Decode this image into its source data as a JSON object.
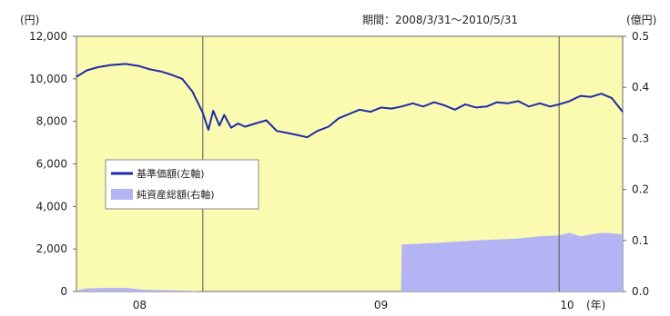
{
  "chart_data": {
    "type": "line",
    "period_label": "期間：2008/3/31～2010/5/31",
    "left_axis_unit": "(円)",
    "right_axis_unit": "(億円)",
    "x_unit": "(年)",
    "x_tick_labels": [
      "08",
      "09",
      "10"
    ],
    "left_ylim": [
      0,
      12000
    ],
    "left_yticks": [
      "0",
      "2,000",
      "4,000",
      "6,000",
      "8,000",
      "10,000",
      "12,000"
    ],
    "right_ylim": [
      0.0,
      0.5
    ],
    "right_yticks": [
      "0.0",
      "0.1",
      "0.2",
      "0.3",
      "0.4",
      "0.5"
    ],
    "x_range": [
      "2008-03-31",
      "2010-05-31"
    ],
    "divider_dates": [
      "2008-09-30",
      "2010-02-28"
    ],
    "legend": [
      {
        "label": "基準価額(左軸)",
        "kind": "line"
      },
      {
        "label": "純資産総額(右軸)",
        "kind": "area"
      }
    ],
    "colors": {
      "plot_bg": "#fafab0",
      "line": "#1f2aa8",
      "area": "#b4b4f5",
      "frame": "#555555"
    },
    "series": [
      {
        "name": "基準価額(左軸)",
        "axis": "left",
        "x": [
          "2008-03-31",
          "2008-04-15",
          "2008-05-01",
          "2008-05-20",
          "2008-06-10",
          "2008-06-30",
          "2008-07-15",
          "2008-07-31",
          "2008-08-15",
          "2008-08-31",
          "2008-09-15",
          "2008-09-30",
          "2008-10-08",
          "2008-10-15",
          "2008-10-24",
          "2008-10-31",
          "2008-11-10",
          "2008-11-20",
          "2008-11-30",
          "2008-12-15",
          "2008-12-31",
          "2009-01-15",
          "2009-01-31",
          "2009-02-15",
          "2009-02-28",
          "2009-03-15",
          "2009-03-31",
          "2009-04-15",
          "2009-04-30",
          "2009-05-15",
          "2009-05-31",
          "2009-06-15",
          "2009-06-30",
          "2009-07-15",
          "2009-07-31",
          "2009-08-15",
          "2009-08-31",
          "2009-09-15",
          "2009-09-30",
          "2009-10-15",
          "2009-10-31",
          "2009-11-15",
          "2009-11-30",
          "2009-12-15",
          "2009-12-31",
          "2010-01-15",
          "2010-01-31",
          "2010-02-15",
          "2010-02-28",
          "2010-03-15",
          "2010-03-31",
          "2010-04-15",
          "2010-04-30",
          "2010-05-15",
          "2010-05-31"
        ],
        "values": [
          10100,
          10400,
          10550,
          10650,
          10700,
          10600,
          10450,
          10350,
          10200,
          10000,
          9400,
          8400,
          7600,
          8500,
          7800,
          8300,
          7700,
          7900,
          7750,
          7900,
          8050,
          7550,
          7450,
          7350,
          7250,
          7550,
          7750,
          8150,
          8350,
          8550,
          8450,
          8650,
          8600,
          8700,
          8850,
          8700,
          8900,
          8750,
          8550,
          8800,
          8650,
          8700,
          8900,
          8850,
          8950,
          8700,
          8850,
          8700,
          8800,
          8950,
          9200,
          9150,
          9300,
          9100,
          8450
        ]
      },
      {
        "name": "純資産総額(右軸)",
        "axis": "right",
        "x": [
          "2008-03-31",
          "2008-04-15",
          "2008-05-15",
          "2008-06-15",
          "2008-06-30",
          "2008-07-15",
          "2008-08-31",
          "2008-09-15",
          "2008-09-30",
          "2008-12-31",
          "2009-03-31",
          "2009-06-30",
          "2009-07-14",
          "2009-07-15",
          "2009-08-31",
          "2009-10-31",
          "2009-12-31",
          "2010-01-31",
          "2010-02-28",
          "2010-03-15",
          "2010-03-31",
          "2010-04-15",
          "2010-04-30",
          "2010-05-15",
          "2010-05-31"
        ],
        "values": [
          0.002,
          0.006,
          0.007,
          0.007,
          0.004,
          0.003,
          0.002,
          0.001,
          0.0,
          0.0,
          0.0,
          0.0,
          0.0,
          0.092,
          0.095,
          0.1,
          0.104,
          0.108,
          0.11,
          0.115,
          0.108,
          0.112,
          0.115,
          0.114,
          0.112
        ]
      }
    ]
  }
}
